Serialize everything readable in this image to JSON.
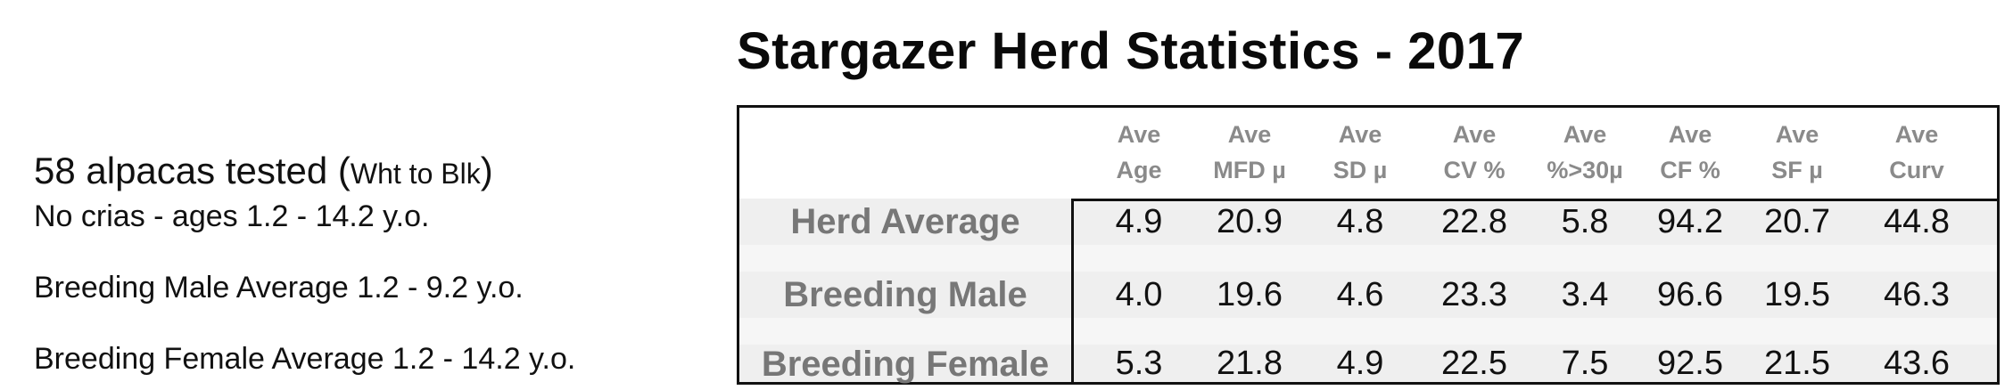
{
  "title": "Stargazer Herd Statistics - 2017",
  "notes": {
    "tested_main": "58 alpacas tested (",
    "tested_range": "Wht to Blk",
    "tested_close": ")",
    "line1": "No crias - ages 1.2 - 14.2 y.o.",
    "line2": "Breeding Male Average 1.2 - 9.2 y.o.",
    "line3": "Breeding  Female Average  1.2 - 14.2 y.o."
  },
  "table": {
    "headers": [
      {
        "top": "Ave",
        "bottom": "Age"
      },
      {
        "top": "Ave",
        "bottom": "MFD µ"
      },
      {
        "top": "Ave",
        "bottom": "SD µ"
      },
      {
        "top": "Ave",
        "bottom": "CV %"
      },
      {
        "top": "Ave",
        "bottom": "%>30µ"
      },
      {
        "top": "Ave",
        "bottom": "CF %"
      },
      {
        "top": "Ave",
        "bottom": "SF µ"
      },
      {
        "top": "Ave",
        "bottom": "Curv"
      }
    ],
    "rows": [
      {
        "label": "Herd Average",
        "values": [
          "4.9",
          "20.9",
          "4.8",
          "22.8",
          "5.8",
          "94.2",
          "20.7",
          "44.8"
        ]
      },
      {
        "label": "Breeding Male",
        "values": [
          "4.0",
          "19.6",
          "4.6",
          "23.3",
          "3.4",
          "96.6",
          "19.5",
          "46.3"
        ]
      },
      {
        "label": "Breeding Female",
        "values": [
          "5.3",
          "21.8",
          "4.9",
          "22.5",
          "7.5",
          "92.5",
          "21.5",
          "43.6"
        ]
      }
    ]
  }
}
